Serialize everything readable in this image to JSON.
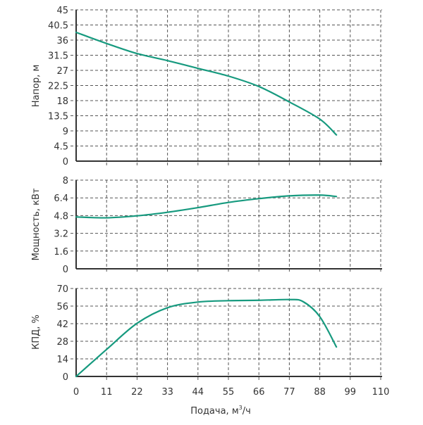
{
  "colors": {
    "curve": "#179a7f",
    "axis": "#333333",
    "grid": "#555555",
    "text": "#333333"
  },
  "x_axis": {
    "label_main": "Подача, м",
    "label_sup": "3",
    "label_tail": "/ч",
    "range": [
      0,
      110
    ],
    "ticks": [
      0,
      11,
      22,
      33,
      44,
      55,
      66,
      77,
      88,
      99,
      110
    ],
    "tick_labels": [
      "0",
      "11",
      "22",
      "33",
      "44",
      "55",
      "66",
      "77",
      "88",
      "99",
      "110"
    ]
  },
  "chart_data": [
    {
      "type": "line",
      "ylabel": "Напор, м",
      "ylim": [
        0,
        45
      ],
      "yticks": [
        "0",
        "4.5",
        "9",
        "13.5",
        "18",
        "22.5",
        "27",
        "31.5",
        "36",
        "40.5",
        "45"
      ],
      "ytick_values": [
        0,
        4.5,
        9,
        13.5,
        18,
        22.5,
        27,
        31.5,
        36,
        40.5,
        45
      ],
      "grid": true,
      "x": [
        0,
        11,
        22,
        33,
        44,
        55,
        66,
        77,
        88,
        94
      ],
      "y": [
        38.3,
        35.0,
        32.0,
        29.9,
        27.6,
        25.3,
        22.2,
        17.6,
        12.5,
        7.8
      ]
    },
    {
      "type": "line",
      "ylabel": "Мощность, кВт",
      "ylim": [
        0,
        8
      ],
      "yticks": [
        "0",
        "1.6",
        "3.2",
        "4.8",
        "6.4",
        "8"
      ],
      "ytick_values": [
        0,
        1.6,
        3.2,
        4.8,
        6.4,
        8
      ],
      "grid": true,
      "x": [
        0,
        11,
        22,
        33,
        44,
        55,
        66,
        77,
        88,
        94
      ],
      "y": [
        4.68,
        4.6,
        4.78,
        5.1,
        5.52,
        5.99,
        6.33,
        6.58,
        6.65,
        6.52
      ]
    },
    {
      "type": "line",
      "ylabel": "КПД, %",
      "ylim": [
        0,
        70
      ],
      "yticks": [
        "0",
        "14",
        "28",
        "42",
        "56",
        "70"
      ],
      "ytick_values": [
        0,
        14,
        28,
        42,
        56,
        70
      ],
      "grid": true,
      "x": [
        0,
        11,
        22,
        33,
        44,
        55,
        66,
        77,
        82,
        88,
        94
      ],
      "y": [
        0,
        21.5,
        42.3,
        54.7,
        59.2,
        60.3,
        60.6,
        61.2,
        59.5,
        47.6,
        23.5
      ]
    }
  ]
}
